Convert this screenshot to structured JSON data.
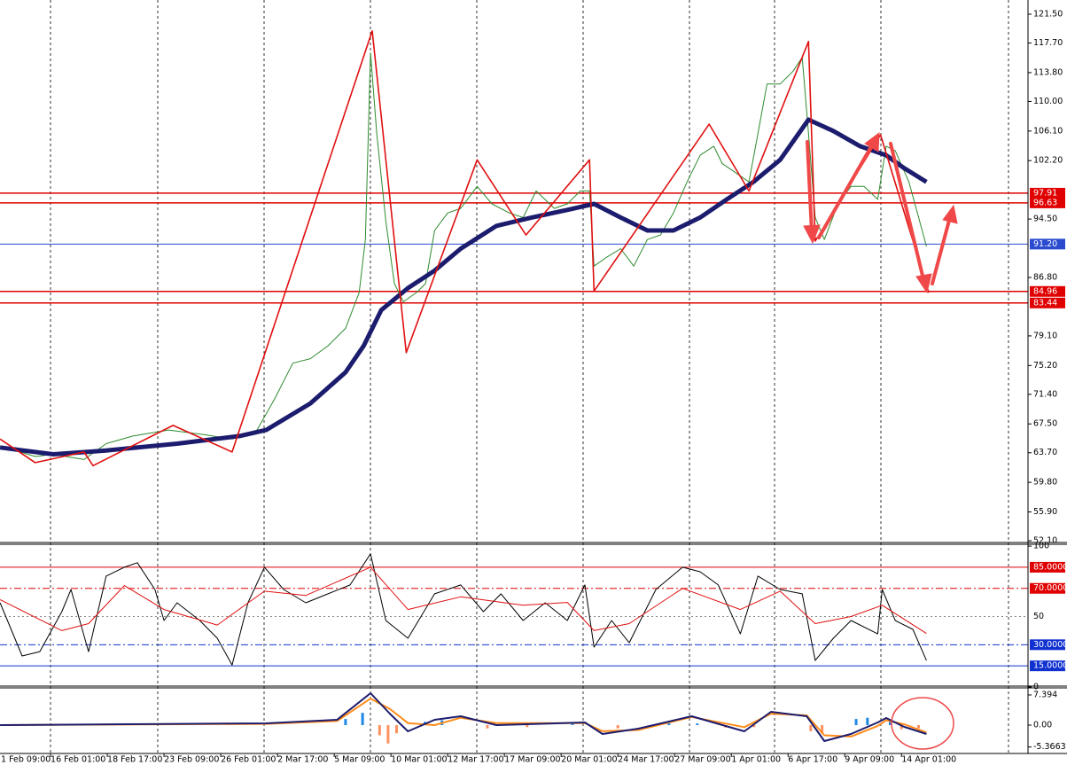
{
  "chart_data": [
    {
      "type": "line",
      "categories": [
        "1 Feb 09:00",
        "16 Feb 01:00",
        "18 Feb 17:00",
        "23 Feb 09:00",
        "26 Feb 01:00",
        "2 Mar 17:00",
        "5 Mar 09:00",
        "10 Mar 01:00",
        "12 Mar 17:00",
        "17 Mar 09:00",
        "20 Mar 01:00",
        "24 Mar 17:00",
        "27 Mar 09:00",
        "1 Apr 01:00",
        "6 Apr 17:00",
        "9 Apr 09:00",
        "14 Apr 01:00"
      ],
      "xlim": [
        0.109,
        18.23
      ],
      "ylim": [
        51.87,
        123.37
      ],
      "yticks": [
        {
          "value": 121.5,
          "label": "121.50"
        },
        {
          "value": 117.7,
          "label": "117.70"
        },
        {
          "value": 113.8,
          "label": "113.80"
        },
        {
          "value": 110,
          "label": "110.00"
        },
        {
          "value": 106.1,
          "label": "106.10"
        },
        {
          "value": 102.2,
          "label": "102.20"
        },
        {
          "value": 94.5,
          "label": "94.50"
        },
        {
          "value": 86.8,
          "label": "86.80"
        },
        {
          "value": 79.1,
          "label": "79.10"
        },
        {
          "value": 75.2,
          "label": "75.20"
        },
        {
          "value": 71.4,
          "label": "71.40"
        },
        {
          "value": 67.5,
          "label": "67.50"
        },
        {
          "value": 63.7,
          "label": "63.70"
        },
        {
          "value": 59.8,
          "label": "59.80"
        },
        {
          "value": 55.9,
          "label": "55.90"
        },
        {
          "value": 52.1,
          "label": "52.10"
        }
      ],
      "hlines": [
        97.91,
        96.63,
        {
          "value": 91.2,
          "label": "91.20"
        },
        84.96,
        83.44
      ],
      "hline_colors": [
        "#e00000",
        "#e00000",
        "#2a4bd0",
        "#e00000",
        "#e00000"
      ],
      "hline_styles": [
        "solid",
        "solid",
        "solid",
        "solid",
        "solid"
      ],
      "series": [
        {
          "color": "#2e8b2e",
          "x": [
            0.11,
            0.73,
            1.05,
            1.59,
            1.98,
            2.45,
            3.08,
            3.7,
            4.2,
            4.64,
            4.95,
            5.27,
            5.58,
            5.89,
            6.2,
            6.44,
            6.55,
            6.64,
            6.75,
            6.91,
            7.06,
            7.22,
            7.45,
            7.61,
            7.77,
            8.0,
            8.23,
            8.52,
            8.78,
            9.09,
            9.33,
            9.56,
            9.88,
            10.11,
            10.34,
            10.5,
            10.58,
            10.81,
            11.05,
            11.28,
            11.52,
            11.75,
            11.98,
            12.22,
            12.45,
            12.69,
            12.84,
            13.08,
            13.31,
            13.47,
            13.63,
            13.86,
            14.09,
            14.25,
            14.36,
            14.48,
            14.64,
            14.88,
            15.11,
            15.34,
            15.58,
            15.73,
            15.89,
            16.13,
            16.28,
            16.44
          ],
          "values": [
            64.6,
            63.2,
            63.5,
            62.8,
            64.9,
            65.9,
            66.7,
            66.1,
            65.5,
            66.7,
            70.8,
            75.5,
            76.1,
            77.8,
            80.1,
            84.8,
            91.8,
            116.4,
            105.8,
            94.2,
            86.0,
            83.6,
            84.8,
            86.0,
            93.0,
            95.3,
            95.9,
            98.8,
            96.5,
            95.3,
            94.7,
            98.2,
            95.9,
            96.5,
            98.2,
            98.2,
            88.3,
            89.5,
            90.6,
            88.3,
            91.8,
            92.4,
            95.3,
            99.4,
            102.9,
            104.1,
            101.8,
            100.6,
            99.4,
            105.8,
            112.3,
            112.3,
            114.0,
            115.8,
            105.8,
            94.7,
            91.8,
            96.5,
            98.8,
            98.8,
            97.1,
            104.1,
            103.5,
            99.4,
            95.3,
            90.9
          ]
        },
        {
          "color": "#1c1c6e",
          "x": [
            0.11,
            1.05,
            1.98,
            3.23,
            4.33,
            4.8,
            5.58,
            6.2,
            6.52,
            6.83,
            7.3,
            7.77,
            8.23,
            8.86,
            9.48,
            10.11,
            10.58,
            11.05,
            11.52,
            11.98,
            12.45,
            12.92,
            13.39,
            13.86,
            14.36,
            14.8,
            15.27,
            15.73,
            16.05,
            16.44
          ],
          "values": [
            64.4,
            63.5,
            64.0,
            64.9,
            65.9,
            66.7,
            70.2,
            74.3,
            77.8,
            82.5,
            85.4,
            87.7,
            90.6,
            93.6,
            94.7,
            95.7,
            96.5,
            94.7,
            93.0,
            93.0,
            94.7,
            97.1,
            99.4,
            102.3,
            107.6,
            106.1,
            104.1,
            102.9,
            101.2,
            99.4
          ]
        },
        {
          "color": "#e01010",
          "x": [
            0.11,
            0.73,
            1.59,
            1.75,
            3.16,
            4.2,
            6.67,
            7.27,
            8.52,
            9.38,
            10.5,
            10.58,
            12.61,
            13.31,
            14.36,
            14.48,
            15.63,
            16.48
          ],
          "values": [
            65.5,
            62.4,
            63.8,
            62.0,
            67.3,
            63.8,
            119.3,
            76.9,
            102.3,
            92.4,
            102.3,
            85.0,
            107.0,
            98.2,
            117.9,
            91.6,
            105.6,
            84.8
          ]
        }
      ]
    },
    {
      "type": "line",
      "ylim": [
        0,
        101.3
      ],
      "yticks": [
        100,
        0
      ],
      "hlines": [
        {
          "value": 85,
          "label": "85.0000"
        },
        {
          "value": 70,
          "label": "70.0000"
        },
        50,
        {
          "value": 30,
          "label": "30.0000"
        },
        {
          "value": 15,
          "label": "15.0000"
        }
      ],
      "hline_colors": [
        "#e00000",
        "#e00000",
        "#888888",
        "#1030d0",
        "#1030d0"
      ],
      "hline_styles": [
        "solid",
        "dashdot",
        "dotted",
        "dashdot",
        "solid"
      ],
      "series": [
        {
          "color": "#000000",
          "x": [
            0.11,
            0.5,
            0.81,
            1.2,
            1.36,
            1.67,
            1.98,
            2.3,
            2.53,
            2.84,
            3.0,
            3.23,
            3.63,
            3.94,
            4.2,
            4.48,
            4.77,
            5.11,
            5.5,
            5.89,
            6.28,
            6.64,
            6.91,
            7.3,
            7.77,
            8.23,
            8.63,
            8.94,
            9.33,
            9.72,
            10.11,
            10.42,
            10.58,
            10.89,
            11.2,
            11.67,
            12.14,
            12.45,
            12.77,
            13.16,
            13.47,
            13.86,
            14.25,
            14.48,
            14.8,
            15.11,
            15.58,
            15.66,
            15.89,
            16.2,
            16.44
          ],
          "values": [
            59.8,
            22.0,
            25.1,
            53.5,
            69.2,
            25.1,
            78.7,
            85.0,
            88.2,
            69.2,
            47.2,
            59.8,
            47.2,
            34.6,
            15.6,
            59.8,
            85.0,
            69.2,
            59.8,
            66.1,
            72.4,
            94.5,
            47.2,
            34.6,
            66.1,
            72.4,
            53.5,
            66.1,
            47.2,
            59.8,
            47.2,
            72.4,
            28.3,
            47.2,
            31.4,
            69.2,
            85.0,
            81.8,
            72.4,
            37.7,
            78.7,
            69.2,
            66.1,
            18.8,
            34.6,
            47.2,
            37.7,
            69.2,
            47.2,
            40.9,
            18.8
          ]
        },
        {
          "color": "#e01010",
          "x": [
            0.11,
            1.2,
            1.67,
            2.3,
            3.0,
            3.94,
            4.77,
            5.5,
            6.64,
            7.3,
            8.23,
            9.33,
            10.11,
            10.58,
            11.2,
            12.14,
            13.16,
            13.86,
            14.48,
            15.11,
            15.66,
            16.44
          ],
          "values": [
            62,
            40,
            45,
            72,
            55,
            44,
            68,
            65,
            85,
            55,
            64,
            58,
            60,
            40,
            45,
            70,
            55,
            68,
            45,
            50,
            58,
            38
          ]
        }
      ]
    },
    {
      "type": "line",
      "ylim": [
        -6.96,
        9.13
      ],
      "yticks": [
        7.394,
        {
          "value": 0,
          "label": "0.00"
        },
        -5.3663
      ],
      "bars": {
        "x": [
          6.2,
          6.5,
          6.8,
          6.95,
          7.1,
          7.6,
          7.9,
          8.7,
          9.4,
          10.2,
          11.0,
          11.9,
          12.4,
          12.9,
          13.4,
          14.4,
          14.6,
          15.2,
          15.4,
          15.8,
          16.0,
          16.3
        ],
        "values": [
          1.5,
          3.0,
          -2.5,
          -4.5,
          -2.0,
          0.8,
          1.2,
          -0.8,
          -0.5,
          0.6,
          -0.8,
          0.5,
          0.4,
          -0.6,
          -0.5,
          -1.5,
          -2.0,
          1.5,
          1.8,
          1.0,
          -1.0,
          -0.8
        ]
      },
      "bar_colors": [
        "#1e88e5",
        "#ff9060"
      ],
      "series": [
        {
          "color": "#ff8c1a",
          "x": [
            0.11,
            4.8,
            6.05,
            6.64,
            6.98,
            7.3,
            7.77,
            8.23,
            8.86,
            10.42,
            10.73,
            11.36,
            12.3,
            13.23,
            13.7,
            14.33,
            14.64,
            15.11,
            15.58,
            15.73,
            16.05,
            16.44
          ],
          "values": [
            0,
            0.3,
            1.0,
            6.5,
            4.0,
            0.5,
            0.0,
            1.8,
            0.5,
            0.5,
            -1.5,
            -1.2,
            2.0,
            -0.5,
            2.8,
            2.4,
            -2.5,
            -2.8,
            -0.2,
            1.2,
            0.2,
            -1.8
          ]
        },
        {
          "color": "#1c1c6e",
          "x": [
            0.11,
            4.8,
            6.05,
            6.64,
            6.98,
            7.3,
            7.77,
            8.23,
            8.86,
            10.42,
            10.73,
            11.36,
            12.3,
            13.23,
            13.7,
            14.33,
            14.64,
            15.11,
            15.58,
            15.73,
            16.05,
            16.44
          ],
          "values": [
            0,
            0.43,
            1.3,
            7.83,
            2.83,
            -1.52,
            1.3,
            2.17,
            0,
            0.65,
            -2.17,
            -0.87,
            2.17,
            -1.52,
            3.26,
            2.17,
            -3.91,
            -2.17,
            0.65,
            1.74,
            -0.43,
            -2.17
          ]
        }
      ]
    }
  ]
}
